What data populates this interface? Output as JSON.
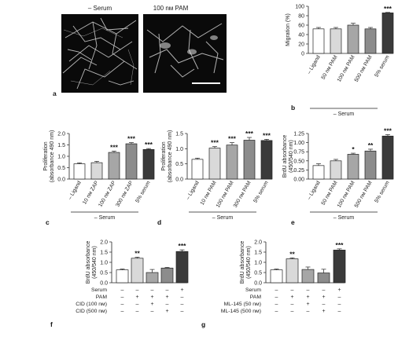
{
  "panel_a": {
    "letter": "a",
    "left_label": "– Serum",
    "right_label": "100 nм PAM"
  },
  "chart_data": [
    {
      "id": "b",
      "type": "bar",
      "letter": "b",
      "ylabel": "Migration (%)",
      "ylim": [
        0,
        100
      ],
      "yticks": [
        0,
        20,
        40,
        60,
        80,
        100
      ],
      "categories": [
        "– Ligand",
        "50 nм PAM",
        "100 nм PAM",
        "500 nм PAM",
        "5% serum"
      ],
      "values": [
        52,
        52,
        60,
        52,
        86
      ],
      "errors": [
        3,
        3,
        4,
        3,
        1
      ],
      "significance": [
        "",
        "",
        "",
        "",
        "***"
      ],
      "fills": [
        "#ffffff",
        "#d9d9d9",
        "#a6a6a6",
        "#8c8c8c",
        "#3a3a3a"
      ],
      "group_label": "– Serum",
      "group_span": [
        0,
        3
      ]
    },
    {
      "id": "c",
      "type": "bar",
      "letter": "c",
      "ylabel": "Proliferation\n(absorbance 490 nm)",
      "ylim": [
        0,
        2.0
      ],
      "yticks": [
        0,
        0.5,
        1.0,
        1.5,
        2.0
      ],
      "categories": [
        "– Ligand",
        "10 nм ZAP",
        "100 nм ZAP",
        "300 nм ZAP",
        "5% serum"
      ],
      "values": [
        0.67,
        0.72,
        1.17,
        1.55,
        1.3
      ],
      "errors": [
        0.04,
        0.06,
        0.06,
        0.05,
        0.04
      ],
      "significance": [
        "",
        "",
        "***",
        "***",
        "***"
      ],
      "fills": [
        "#ffffff",
        "#d9d9d9",
        "#a6a6a6",
        "#8c8c8c",
        "#3a3a3a"
      ],
      "group_label": "– Serum",
      "group_span": [
        0,
        3
      ]
    },
    {
      "id": "d",
      "type": "bar",
      "letter": "d",
      "ylabel": "Proliferation\n(absorbance 490 nm)",
      "ylim": [
        0,
        1.5
      ],
      "yticks": [
        0,
        0.5,
        1.0,
        1.5
      ],
      "categories": [
        "– Ligand",
        "10 nм PAM",
        "100 nм PAM",
        "300 nм PAM",
        "5% serum"
      ],
      "values": [
        0.65,
        1.02,
        1.12,
        1.28,
        1.27
      ],
      "errors": [
        0.04,
        0.05,
        0.08,
        0.09,
        0.04
      ],
      "significance": [
        "",
        "***",
        "***",
        "***",
        "***"
      ],
      "fills": [
        "#ffffff",
        "#d9d9d9",
        "#a6a6a6",
        "#8c8c8c",
        "#3a3a3a"
      ],
      "group_label": "– Serum",
      "group_span": [
        0,
        3
      ]
    },
    {
      "id": "e",
      "type": "bar",
      "letter": "e",
      "ylabel": "BrdU absorbance\n(450/540 nm)",
      "ylim": [
        0,
        1.25
      ],
      "yticks": [
        0,
        0.25,
        0.5,
        0.75,
        1.0,
        1.25
      ],
      "categories": [
        "– Ligand",
        "50 nм PAM",
        "100 nм PAM",
        "500 nм PAM",
        "5% serum"
      ],
      "values": [
        0.37,
        0.5,
        0.68,
        0.77,
        1.18
      ],
      "errors": [
        0.05,
        0.04,
        0.03,
        0.05,
        0.04
      ],
      "significance": [
        "",
        "",
        "*",
        "**",
        "***"
      ],
      "fills": [
        "#ffffff",
        "#d9d9d9",
        "#a6a6a6",
        "#8c8c8c",
        "#3a3a3a"
      ],
      "group_label": "– Serum",
      "group_span": [
        0,
        3
      ]
    },
    {
      "id": "f",
      "type": "bar",
      "letter": "f",
      "ylabel": "BrdU absorbance\n(450/540 nm)",
      "ylim": [
        0,
        2.0
      ],
      "yticks": [
        0,
        0.5,
        1.0,
        1.5,
        2.0
      ],
      "values": [
        0.63,
        1.2,
        0.5,
        0.72,
        1.53
      ],
      "errors": [
        0.04,
        0.05,
        0.15,
        0.03,
        0.08
      ],
      "significance": [
        "",
        "**",
        "",
        "",
        "***"
      ],
      "fills": [
        "#ffffff",
        "#d9d9d9",
        "#a6a6a6",
        "#8c8c8c",
        "#3a3a3a"
      ],
      "condition_rows": [
        {
          "label": "Serum",
          "marks": [
            "–",
            "–",
            "–",
            "–",
            "+"
          ]
        },
        {
          "label": "PAM",
          "marks": [
            "–",
            "+",
            "+",
            "+",
            "–"
          ]
        },
        {
          "label": "CID (100 nм)",
          "marks": [
            "–",
            "–",
            "+",
            "–",
            "–"
          ]
        },
        {
          "label": "CID (500 nм)",
          "marks": [
            "–",
            "–",
            "–",
            "+",
            "–"
          ]
        }
      ]
    },
    {
      "id": "g",
      "type": "bar",
      "letter": "g",
      "ylabel": "BrdU absorbance\n(450/540 nm)",
      "ylim": [
        0,
        2.0
      ],
      "yticks": [
        0,
        0.5,
        1.0,
        1.5,
        2.0
      ],
      "values": [
        0.63,
        1.17,
        0.65,
        0.48,
        1.6
      ],
      "errors": [
        0.04,
        0.05,
        0.12,
        0.18,
        0.06
      ],
      "significance": [
        "",
        "**",
        "",
        "",
        "***"
      ],
      "fills": [
        "#ffffff",
        "#d9d9d9",
        "#a6a6a6",
        "#8c8c8c",
        "#3a3a3a"
      ],
      "condition_rows": [
        {
          "label": "Serum",
          "marks": [
            "–",
            "–",
            "–",
            "–",
            "+"
          ]
        },
        {
          "label": "PAM",
          "marks": [
            "–",
            "+",
            "+",
            "+",
            "–"
          ]
        },
        {
          "label": "ML-145 (50 nм)",
          "marks": [
            "–",
            "–",
            "+",
            "–",
            "–"
          ]
        },
        {
          "label": "ML-145 (500 nм)",
          "marks": [
            "–",
            "–",
            "–",
            "+",
            "–"
          ]
        }
      ]
    }
  ]
}
